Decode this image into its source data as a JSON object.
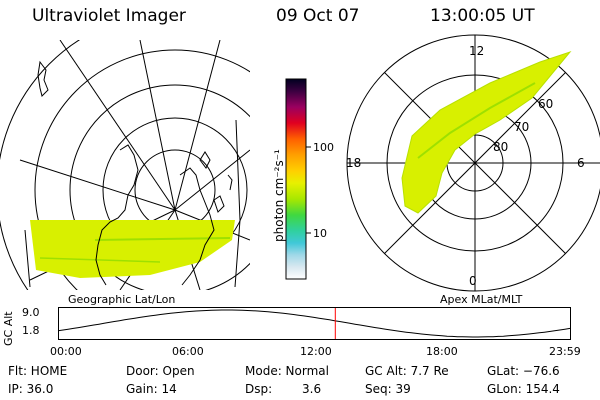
{
  "header": {
    "title": "Ultraviolet Imager",
    "date": "09 Oct 07",
    "time": "13:00:05 UT"
  },
  "geo_panel": {
    "label": "Geographic Lat/Lon"
  },
  "apex_panel": {
    "label": "Apex MLat/MLT",
    "mlt_labels": {
      "top": "12",
      "left": "18",
      "right": "6",
      "bottom": "0"
    },
    "lat_labels": [
      "60",
      "70",
      "80"
    ]
  },
  "colorbar": {
    "unit": "photon cm⁻²s⁻¹",
    "ticks": [
      "100",
      "10"
    ]
  },
  "altitude_plot": {
    "ylabel": "GC Alt",
    "y_ticks": [
      "9.0",
      "1.8"
    ],
    "x_ticks": [
      "00:00",
      "06:00",
      "12:00",
      "18:00",
      "23:59"
    ],
    "marker_time_hours": 13.0
  },
  "status": {
    "flt": "Flt: HOME",
    "ip": "IP: 36.0",
    "door": "Door: Open",
    "gain": "Gain: 14",
    "mode": "Mode: Normal",
    "dsp_label": "Dsp:",
    "dsp_value": "3.6",
    "gc_alt": "GC Alt: 7.7 Re",
    "seq": "Seq: 39",
    "glat": "GLat: −76.6",
    "glon": "GLon: 154.4"
  },
  "colors": {
    "aurora": "#d8f000",
    "aurora_stripe": "#9ee000",
    "marker": "#ff0000"
  }
}
